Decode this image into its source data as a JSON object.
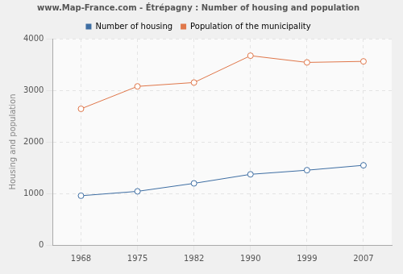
{
  "chart_data": {
    "type": "line",
    "title": "www.Map-France.com - Étrépagny : Number of housing and population",
    "y_label": "Housing and population",
    "categories": [
      "1968",
      "1975",
      "1982",
      "1990",
      "1999",
      "2007"
    ],
    "series": [
      {
        "name": "Number of housing",
        "color": "#3e6ea3",
        "values": [
          955,
          1040,
          1195,
          1370,
          1450,
          1545
        ],
        "marker": "circle"
      },
      {
        "name": "Population of the municipality",
        "color": "#e0774a",
        "values": [
          2640,
          3075,
          3150,
          3670,
          3540,
          3560
        ],
        "marker": "circle"
      }
    ],
    "ylim": [
      0,
      4000
    ],
    "yticks": [
      0,
      1000,
      2000,
      3000,
      4000
    ],
    "grid": true,
    "legend": "top"
  }
}
